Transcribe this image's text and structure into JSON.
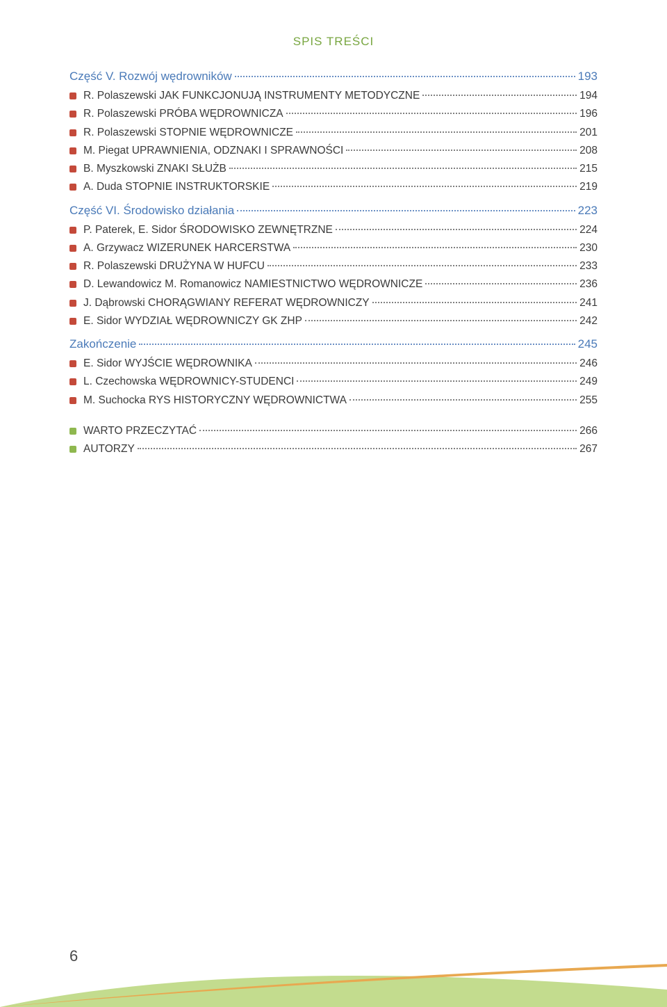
{
  "header": "SPIS TREŚCI",
  "page_number": "6",
  "colors": {
    "header": "#78a640",
    "section_title": "#4a7ab8",
    "text": "#3a3a3a",
    "bullet_red": "#c44a3a",
    "bullet_green": "#8fb84f",
    "dots": "#808080",
    "dots_blue": "#6a8fc4",
    "background": "#ffffff",
    "footer_arc_green": "#b8d67a",
    "footer_arc_orange": "#e8a850"
  },
  "sections": [
    {
      "title": "Część V. Rozwój wędrowników",
      "page": "193",
      "entries": [
        {
          "bullet": "red",
          "label": "R. Polaszewski  JAK FUNKCJONUJĄ INSTRUMENTY METODYCZNE",
          "page": "194"
        },
        {
          "bullet": "red",
          "label": "R. Polaszewski  PRÓBA WĘDROWNICZA",
          "page": "196"
        },
        {
          "bullet": "red",
          "label": "R. Polaszewski  STOPNIE WĘDROWNICZE",
          "page": "201"
        },
        {
          "bullet": "red",
          "label": "M. Piegat  UPRAWNIENIA, ODZNAKI I SPRAWNOŚCI",
          "page": "208"
        },
        {
          "bullet": "red",
          "label": "B. Myszkowski  ZNAKI SŁUŻB",
          "page": "215"
        },
        {
          "bullet": "red",
          "label": "A. Duda  STOPNIE INSTRUKTORSKIE",
          "page": "219"
        }
      ]
    },
    {
      "title": "Część VI. Środowisko działania",
      "page": "223",
      "entries": [
        {
          "bullet": "red",
          "label": "P. Paterek, E. Sidor  ŚRODOWISKO ZEWNĘTRZNE",
          "page": "224"
        },
        {
          "bullet": "red",
          "label": "A. Grzywacz  WIZERUNEK HARCERSTWA",
          "page": "230"
        },
        {
          "bullet": "red",
          "label": "R. Polaszewski  DRUŻYNA W HUFCU",
          "page": "233"
        },
        {
          "bullet": "red",
          "label": "D. Lewandowicz  M. Romanowicz  NAMIESTNICTWO WĘDROWNICZE",
          "page": "236"
        },
        {
          "bullet": "red",
          "label": "J. Dąbrowski  CHORĄGWIANY REFERAT WĘDROWNICZY",
          "page": "241"
        },
        {
          "bullet": "red",
          "label": "E. Sidor  WYDZIAŁ WĘDROWNICZY GK ZHP",
          "page": "242"
        }
      ]
    },
    {
      "title": "Zakończenie",
      "page": "245",
      "entries": [
        {
          "bullet": "red",
          "label": "E. Sidor  WYJŚCIE WĘDROWNIKA",
          "page": "246"
        },
        {
          "bullet": "red",
          "label": "L. Czechowska  WĘDROWNICY-STUDENCI",
          "page": "249"
        },
        {
          "bullet": "red",
          "label": "M. Suchocka  RYS HISTORYCZNY WĘDROWNICTWA",
          "page": "255"
        }
      ]
    },
    {
      "title": null,
      "page": null,
      "spacer": true,
      "entries": [
        {
          "bullet": "green",
          "label": "WARTO PRZECZYTAĆ",
          "page": "266"
        },
        {
          "bullet": "green",
          "label": "AUTORZY",
          "page": "267"
        }
      ]
    }
  ]
}
